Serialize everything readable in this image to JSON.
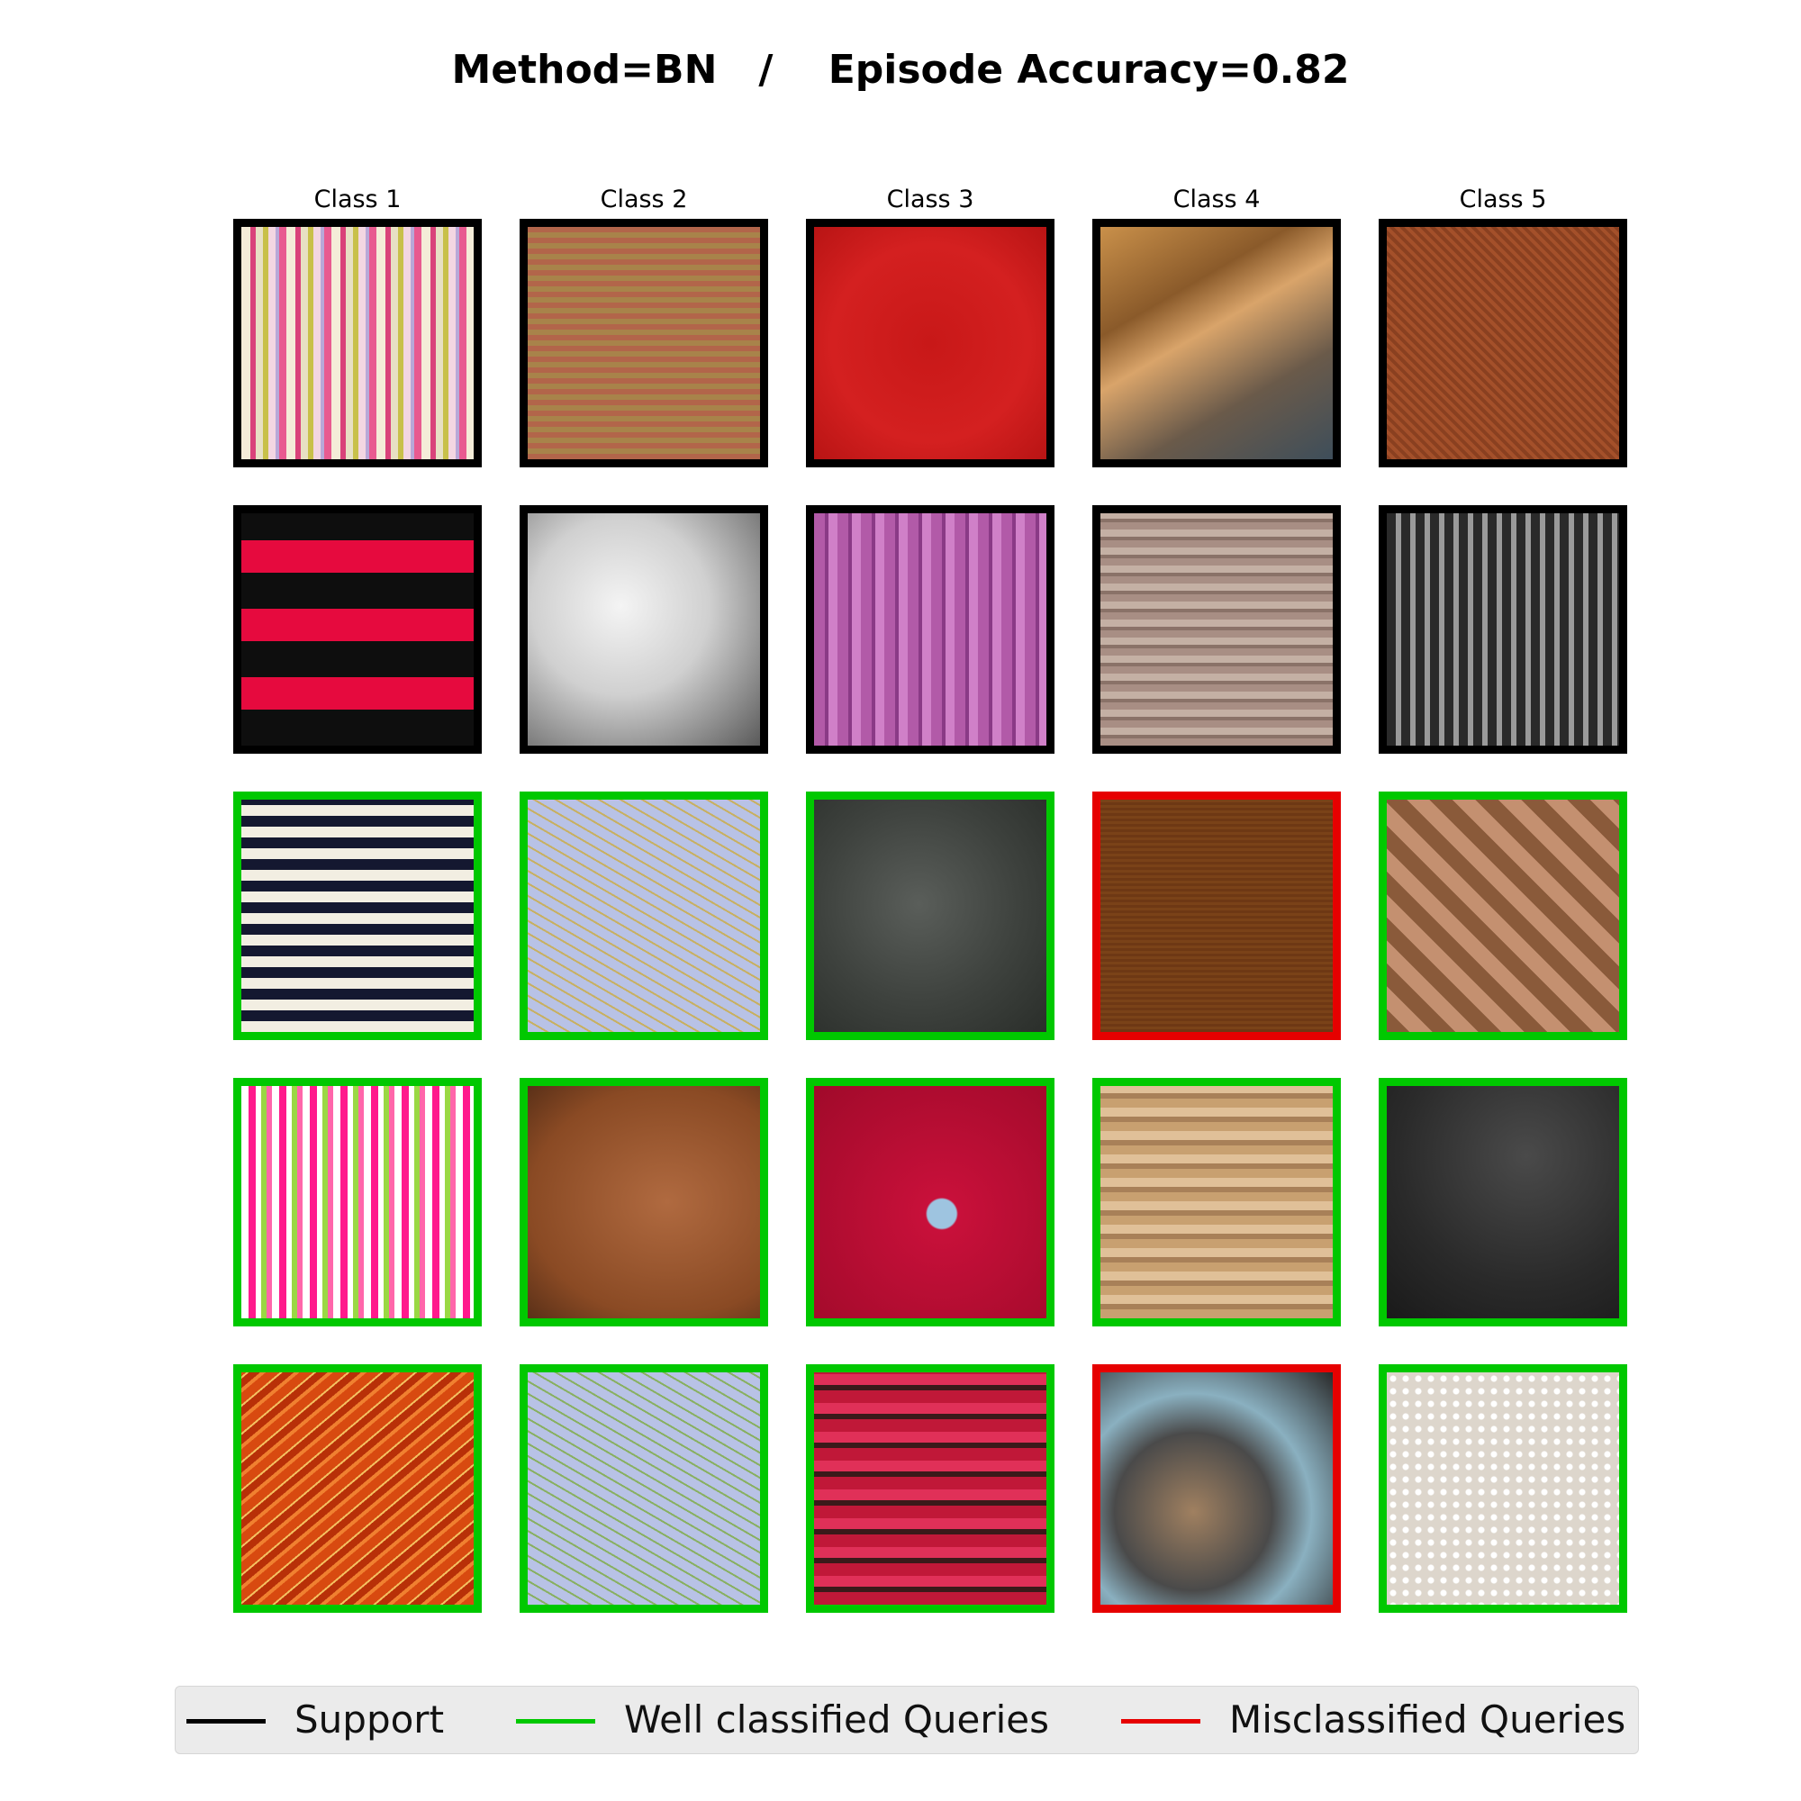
{
  "title": "Method=BN   /    Episode Accuracy=0.82",
  "columns": [
    "Class 1",
    "Class 2",
    "Class 3",
    "Class 4",
    "Class 5"
  ],
  "status_colors": {
    "support": "#000000",
    "correct": "#00c800",
    "wrong": "#e60000"
  },
  "grid": [
    [
      "support",
      "support",
      "support",
      "support",
      "support"
    ],
    [
      "support",
      "support",
      "support",
      "support",
      "support"
    ],
    [
      "correct",
      "correct",
      "correct",
      "wrong",
      "correct"
    ],
    [
      "correct",
      "correct",
      "correct",
      "correct",
      "correct"
    ],
    [
      "correct",
      "correct",
      "correct",
      "wrong",
      "correct"
    ]
  ],
  "legend": {
    "support": "Support",
    "correct": "Well classified Queries",
    "wrong": "Misclassified Queries"
  }
}
